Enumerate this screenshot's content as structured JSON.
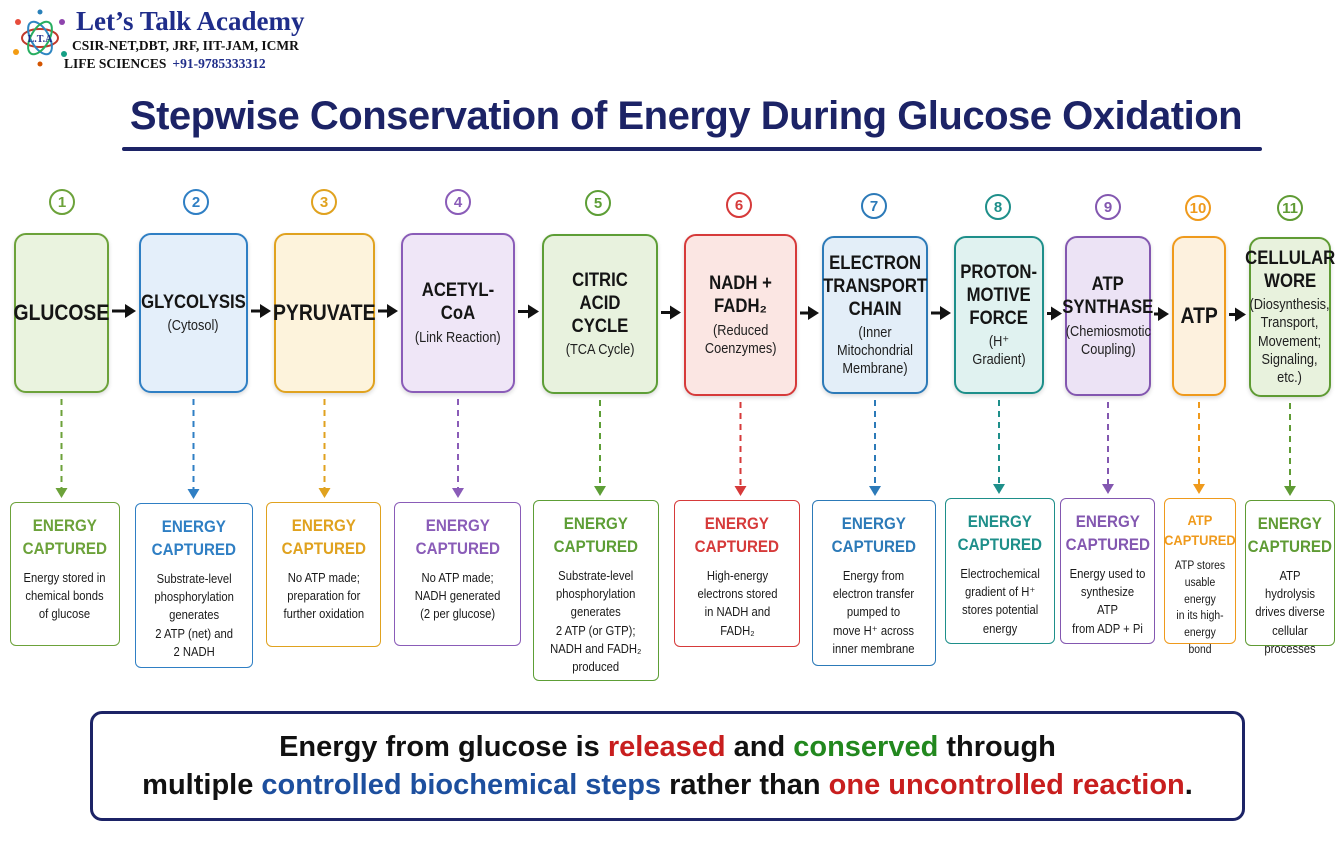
{
  "brand": {
    "name": "Let’s Talk Academy",
    "exams": "CSIR-NET,DBT, JRF, IIT-JAM, ICMR",
    "subject": "LIFE SCIENCES",
    "phone": "+91-9785333312",
    "logo_text": "L.T.A"
  },
  "title": "Stepwise Conservation of Energy During Glucose Oxidation",
  "steps": [
    {
      "num": "1",
      "title": "GLUCOSE",
      "sub": "",
      "color": "#6ca23a",
      "fill": "#eaf3df",
      "energy_head": "ENERGY\nCAPTURED",
      "energy_desc": "Energy stored in\nchemical bonds\nof glucose"
    },
    {
      "num": "2",
      "title": "GLYCOLYSIS",
      "sub": "(Cytosol)",
      "color": "#2f7fc4",
      "fill": "#e4effa",
      "energy_head": "ENERGY\nCAPTURED",
      "energy_desc": "Substrate-level\nphosphorylation\ngenerates\n2 ATP (net) and\n2 NADH"
    },
    {
      "num": "3",
      "title": "PYRUVATE",
      "sub": "",
      "color": "#e0a21f",
      "fill": "#fdf3dc",
      "energy_head": "ENERGY\nCAPTURED",
      "energy_desc": "No ATP made;\npreparation for\nfurther oxidation"
    },
    {
      "num": "4",
      "title": "ACETYL-CoA",
      "sub": "(Link Reaction)",
      "color": "#8a5cb8",
      "fill": "#efe6f7",
      "energy_head": "ENERGY\nCAPTURED",
      "energy_desc": "No ATP made;\nNADH generated\n(2 per glucose)"
    },
    {
      "num": "5",
      "title": "CITRIC ACID\nCYCLE",
      "sub": "(TCA Cycle)",
      "color": "#5d9e36",
      "fill": "#e8f2de",
      "energy_head": "ENERGY\nCAPTURED",
      "energy_desc": "Substrate-level\nphosphorylation\ngenerates\n2 ATP (or GTP);\nNADH and FADH₂\nproduced"
    },
    {
      "num": "6",
      "title": "NADH + FADH₂",
      "sub": "(Reduced\nCoenzymes)",
      "color": "#d63a3a",
      "fill": "#fbe6e3",
      "energy_head": "ENERGY\nCAPTURED",
      "energy_desc": "High-energy\nelectrons stored\nin NADH and\nFADH₂"
    },
    {
      "num": "7",
      "title": "ELECTRON\nTRANSPORT\nCHAIN",
      "sub": "(Inner Mitochondrial\nMembrane)",
      "color": "#2c7ab8",
      "fill": "#e3eef8",
      "energy_head": "ENERGY\nCAPTURED",
      "energy_desc": "Energy from\nelectron transfer\npumped to\nmove H⁺ across\ninner membrane"
    },
    {
      "num": "8",
      "title": "PROTON-\nMOTIVE\nFORCE",
      "sub": "(H⁺ Gradient)",
      "color": "#1e8f8a",
      "fill": "#e0f2f0",
      "energy_head": "ENERGY\nCAPTURED",
      "energy_desc": "Electrochemical\ngradient of H⁺\nstores potential\nenergy"
    },
    {
      "num": "9",
      "title": "ATP\nSYNTHASE",
      "sub": "(Chemiosmotic\nCoupling)",
      "color": "#8357b0",
      "fill": "#ece3f5",
      "energy_head": "ENERGY\nCAPTURED",
      "energy_desc": "Energy used to\nsynthesize ATP\nfrom ADP + Pi"
    },
    {
      "num": "10",
      "title": "ATP",
      "sub": "",
      "color": "#ef9a1c",
      "fill": "#fdf1de",
      "energy_head": "ATP\nCAPTURED",
      "energy_desc": "ATP stores\nusable energy\nin its high-\nenergy bond"
    },
    {
      "num": "11",
      "title": "CELLULAR\nWORE",
      "sub": "(Diosynthesis,\nTransport,\nMovement;\nSignaling, etc.)",
      "color": "#5f9b34",
      "fill": "#e8f2dd",
      "energy_head": "ENERGY\nCAPTURED",
      "energy_desc": "ATP hydrolysis\ndrives diverse\ncellular\nprocesses"
    }
  ],
  "summary": {
    "l1_a": "Energy from glucose is ",
    "l1_b": "released",
    "l1_c": " and ",
    "l1_d": "conserved",
    "l1_e": " through",
    "l2_a": "multiple ",
    "l2_b": "controlled biochemical steps",
    "l2_c": " rather than ",
    "l2_d": "one uncontrolled reaction",
    "l2_e": "."
  }
}
